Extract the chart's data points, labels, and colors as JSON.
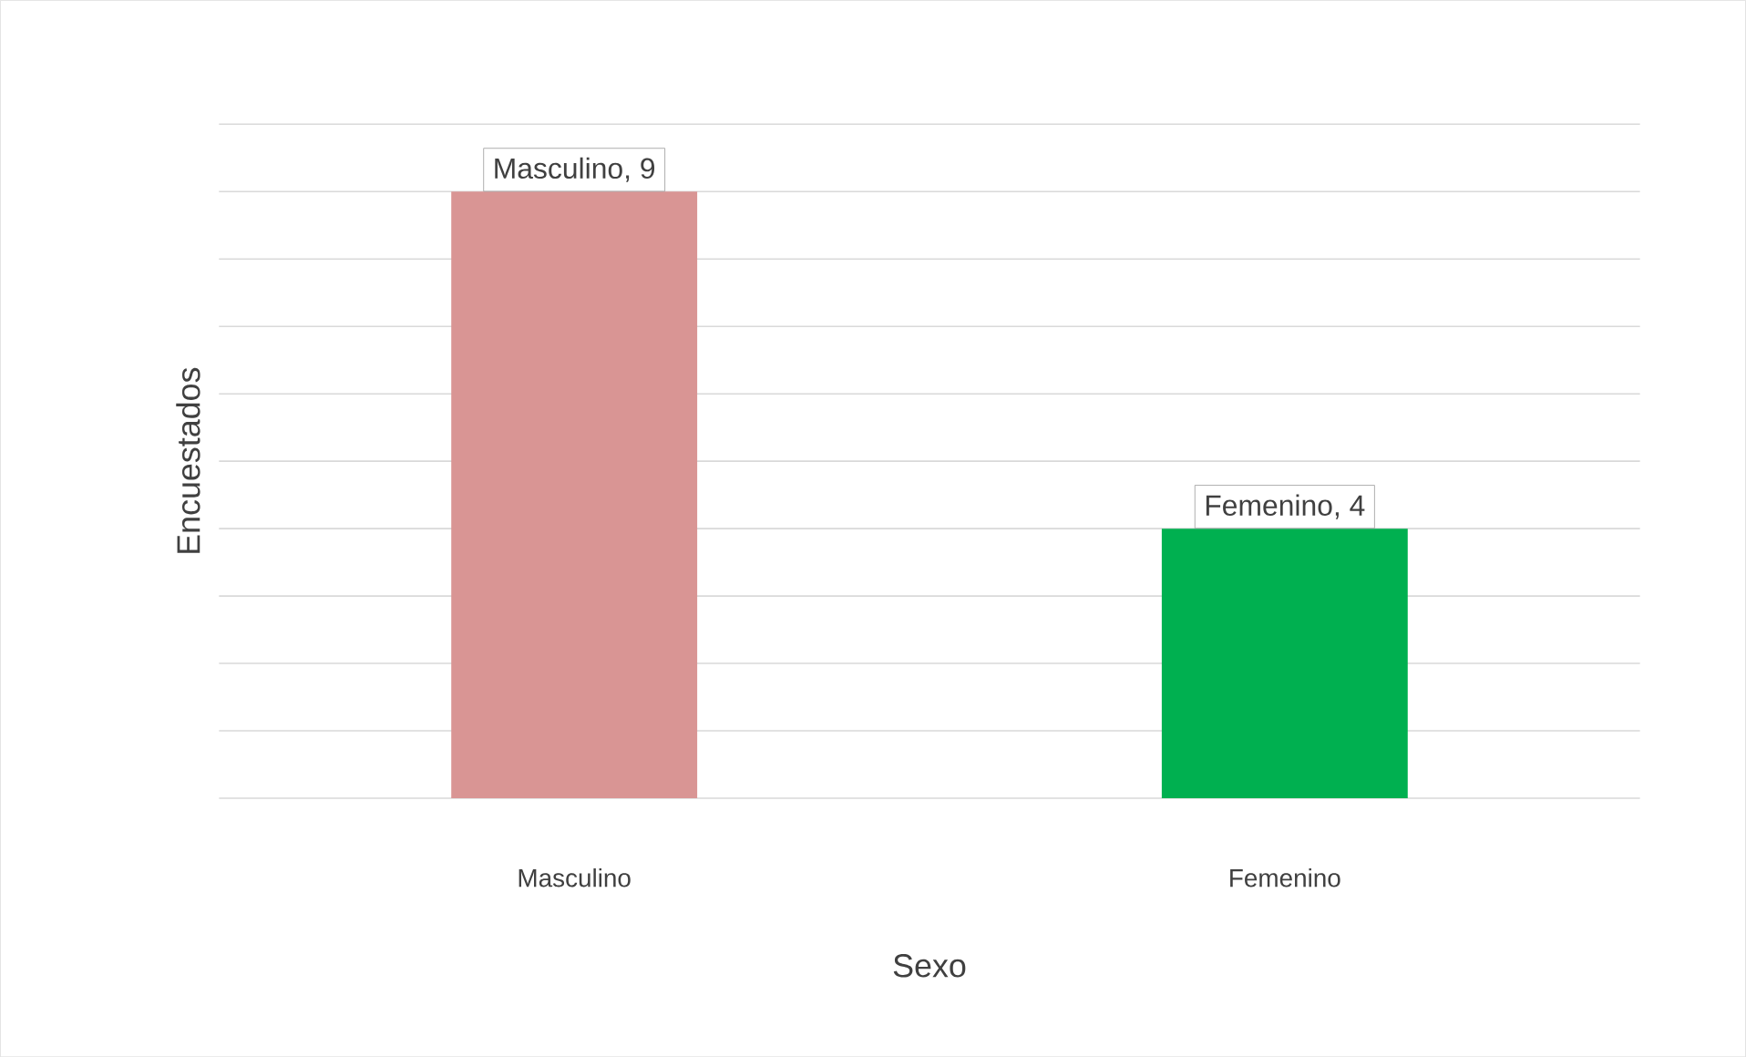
{
  "chart_data": {
    "type": "bar",
    "categories": [
      "Masculino",
      "Femenino"
    ],
    "values": [
      9,
      4
    ],
    "colors": [
      "#d99594",
      "#00b050"
    ],
    "value_labels": [
      "Masculino, 9",
      "Femenino, 4"
    ],
    "xlabel": "Sexo",
    "ylabel": "Encuestados",
    "ylim": [
      0,
      10
    ],
    "yticks": [
      {
        "value": 0,
        "label": null
      },
      {
        "value": 1,
        "label": null
      },
      {
        "value": 2,
        "label": null
      },
      {
        "value": 3,
        "label": null
      },
      {
        "value": 4,
        "label": null
      },
      {
        "value": 5,
        "label": null
      },
      {
        "value": 6,
        "label": null
      },
      {
        "value": 7,
        "label": null
      },
      {
        "value": 8,
        "label": null
      },
      {
        "value": 9,
        "label": null
      },
      {
        "value": 10,
        "label": null
      }
    ],
    "grid": "y",
    "tick_labels": "x"
  }
}
